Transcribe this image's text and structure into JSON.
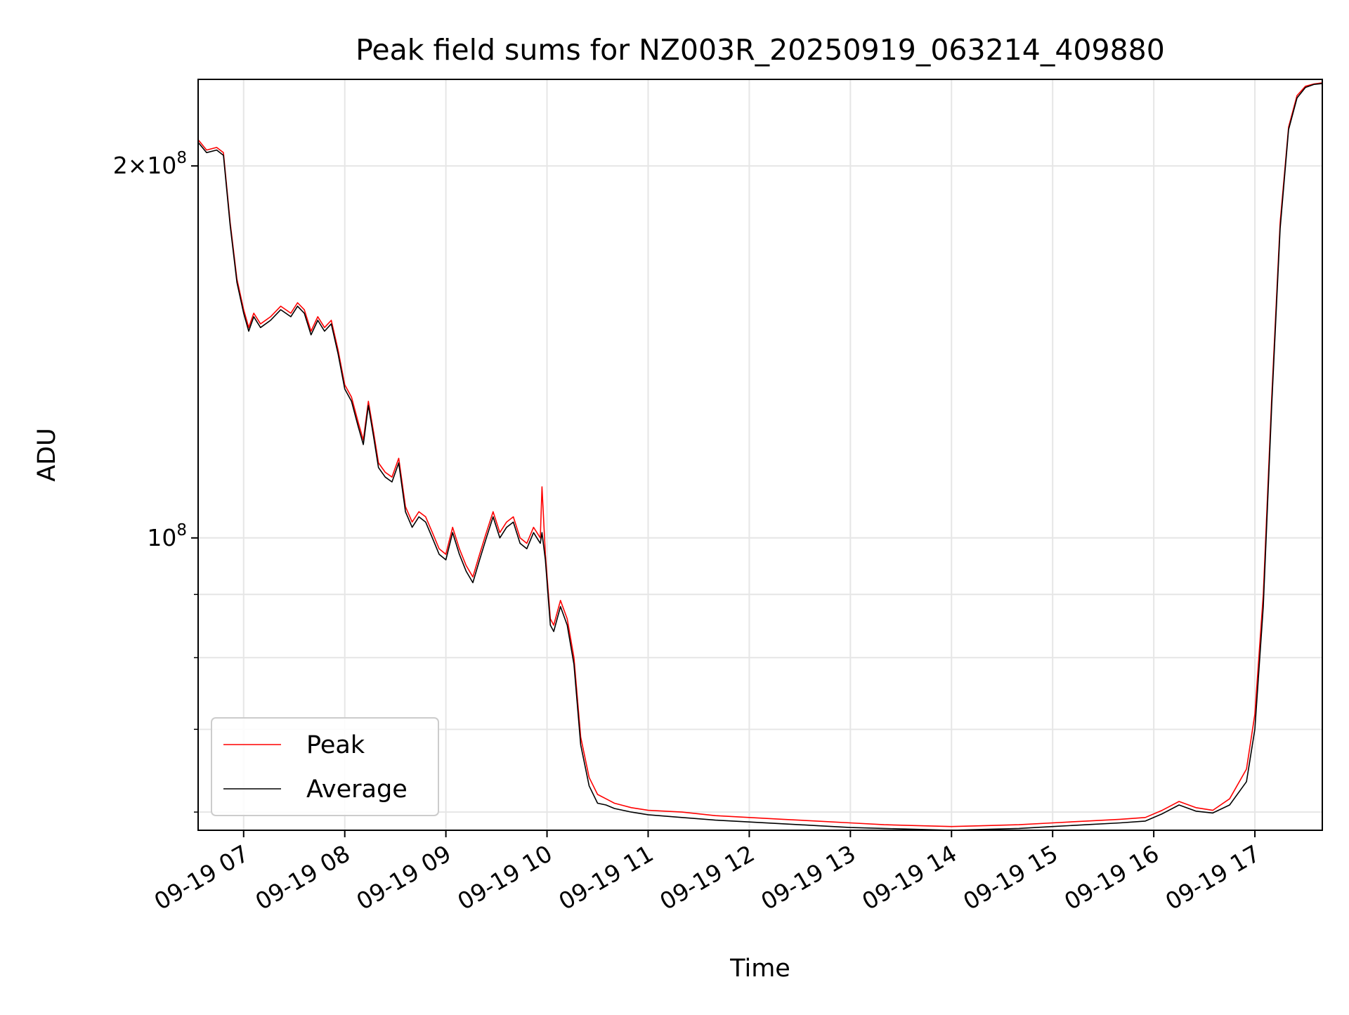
{
  "chart_data": {
    "type": "line",
    "title": "Peak field sums for NZ003R_20250919_063214_409880",
    "xlabel": "Time",
    "ylabel": "ADU",
    "y_scale": "log",
    "xlim": [
      "2025-09-19 06:33",
      "2025-09-19 17:40"
    ],
    "ylim": [
      58000000,
      235000000
    ],
    "x_ticks": [
      {
        "value": "2025-09-19 07:00",
        "label": "09-19 07"
      },
      {
        "value": "2025-09-19 08:00",
        "label": "09-19 08"
      },
      {
        "value": "2025-09-19 09:00",
        "label": "09-19 09"
      },
      {
        "value": "2025-09-19 10:00",
        "label": "09-19 10"
      },
      {
        "value": "2025-09-19 11:00",
        "label": "09-19 11"
      },
      {
        "value": "2025-09-19 12:00",
        "label": "09-19 12"
      },
      {
        "value": "2025-09-19 13:00",
        "label": "09-19 13"
      },
      {
        "value": "2025-09-19 14:00",
        "label": "09-19 14"
      },
      {
        "value": "2025-09-19 15:00",
        "label": "09-19 15"
      },
      {
        "value": "2025-09-19 16:00",
        "label": "09-19 16"
      },
      {
        "value": "2025-09-19 17:00",
        "label": "09-19 17"
      }
    ],
    "y_ticks_major": [
      {
        "value": 100000000,
        "base": "10",
        "exp": "8",
        "coef": ""
      },
      {
        "value": 200000000,
        "base": "10",
        "exp": "8",
        "coef": "2"
      }
    ],
    "y_ticks_minor": [
      60000000,
      70000000,
      80000000,
      90000000
    ],
    "grid": true,
    "legend": {
      "position": "lower-left",
      "entries": [
        "Peak",
        "Average"
      ]
    },
    "series": [
      {
        "name": "Peak",
        "color": "#ff0000",
        "x": [
          "2025-09-19 06:33",
          "2025-09-19 06:38",
          "2025-09-19 06:44",
          "2025-09-19 06:48",
          "2025-09-19 06:52",
          "2025-09-19 06:56",
          "2025-09-19 07:00",
          "2025-09-19 07:03",
          "2025-09-19 07:06",
          "2025-09-19 07:10",
          "2025-09-19 07:16",
          "2025-09-19 07:22",
          "2025-09-19 07:28",
          "2025-09-19 07:32",
          "2025-09-19 07:36",
          "2025-09-19 07:40",
          "2025-09-19 07:44",
          "2025-09-19 07:48",
          "2025-09-19 07:52",
          "2025-09-19 07:56",
          "2025-09-19 08:00",
          "2025-09-19 08:04",
          "2025-09-19 08:08",
          "2025-09-19 08:11",
          "2025-09-19 08:14",
          "2025-09-19 08:17",
          "2025-09-19 08:20",
          "2025-09-19 08:24",
          "2025-09-19 08:28",
          "2025-09-19 08:32",
          "2025-09-19 08:36",
          "2025-09-19 08:40",
          "2025-09-19 08:44",
          "2025-09-19 08:48",
          "2025-09-19 08:52",
          "2025-09-19 08:56",
          "2025-09-19 09:00",
          "2025-09-19 09:04",
          "2025-09-19 09:08",
          "2025-09-19 09:12",
          "2025-09-19 09:16",
          "2025-09-19 09:20",
          "2025-09-19 09:24",
          "2025-09-19 09:28",
          "2025-09-19 09:32",
          "2025-09-19 09:36",
          "2025-09-19 09:40",
          "2025-09-19 09:44",
          "2025-09-19 09:48",
          "2025-09-19 09:52",
          "2025-09-19 09:56",
          "2025-09-19 09:57",
          "2025-09-19 09:59",
          "2025-09-19 10:02",
          "2025-09-19 10:04",
          "2025-09-19 10:08",
          "2025-09-19 10:12",
          "2025-09-19 10:16",
          "2025-09-19 10:20",
          "2025-09-19 10:25",
          "2025-09-19 10:30",
          "2025-09-19 10:35",
          "2025-09-19 10:40",
          "2025-09-19 10:50",
          "2025-09-19 11:00",
          "2025-09-19 11:20",
          "2025-09-19 11:40",
          "2025-09-19 12:00",
          "2025-09-19 12:20",
          "2025-09-19 12:40",
          "2025-09-19 13:00",
          "2025-09-19 13:20",
          "2025-09-19 13:40",
          "2025-09-19 14:00",
          "2025-09-19 14:20",
          "2025-09-19 14:40",
          "2025-09-19 15:00",
          "2025-09-19 15:20",
          "2025-09-19 15:40",
          "2025-09-19 15:55",
          "2025-09-19 16:05",
          "2025-09-19 16:15",
          "2025-09-19 16:25",
          "2025-09-19 16:35",
          "2025-09-19 16:45",
          "2025-09-19 16:55",
          "2025-09-19 17:00",
          "2025-09-19 17:05",
          "2025-09-19 17:10",
          "2025-09-19 17:15",
          "2025-09-19 17:20",
          "2025-09-19 17:25",
          "2025-09-19 17:30",
          "2025-09-19 17:35",
          "2025-09-19 17:40"
        ],
        "y": [
          210000000,
          206000000,
          207000000,
          205000000,
          180000000,
          162000000,
          153000000,
          148000000,
          152000000,
          149000000,
          151000000,
          154000000,
          152000000,
          155000000,
          153000000,
          147000000,
          151000000,
          148000000,
          150000000,
          142000000,
          133000000,
          130000000,
          124000000,
          120000000,
          129000000,
          122000000,
          115000000,
          113000000,
          112000000,
          116000000,
          106000000,
          103000000,
          105000000,
          104000000,
          101000000,
          98000000,
          97000000,
          102000000,
          98000000,
          95000000,
          93000000,
          97000000,
          101000000,
          105000000,
          101000000,
          103000000,
          104000000,
          100000000,
          99000000,
          102000000,
          100000000,
          110000000,
          97000000,
          86000000,
          85000000,
          89000000,
          86000000,
          80000000,
          69000000,
          64000000,
          62000000,
          61500000,
          61000000,
          60500000,
          60200000,
          60000000,
          59600000,
          59400000,
          59200000,
          59000000,
          58800000,
          58600000,
          58500000,
          58400000,
          58500000,
          58600000,
          58800000,
          59000000,
          59200000,
          59400000,
          60200000,
          61200000,
          60500000,
          60200000,
          61500000,
          65000000,
          72000000,
          90000000,
          130000000,
          180000000,
          215000000,
          228000000,
          232000000,
          233000000,
          233500000
        ]
      },
      {
        "name": "Average",
        "color": "#000000",
        "x": [
          "2025-09-19 06:33",
          "2025-09-19 06:38",
          "2025-09-19 06:44",
          "2025-09-19 06:48",
          "2025-09-19 06:52",
          "2025-09-19 06:56",
          "2025-09-19 07:00",
          "2025-09-19 07:03",
          "2025-09-19 07:06",
          "2025-09-19 07:10",
          "2025-09-19 07:16",
          "2025-09-19 07:22",
          "2025-09-19 07:28",
          "2025-09-19 07:32",
          "2025-09-19 07:36",
          "2025-09-19 07:40",
          "2025-09-19 07:44",
          "2025-09-19 07:48",
          "2025-09-19 07:52",
          "2025-09-19 07:56",
          "2025-09-19 08:00",
          "2025-09-19 08:04",
          "2025-09-19 08:08",
          "2025-09-19 08:11",
          "2025-09-19 08:14",
          "2025-09-19 08:17",
          "2025-09-19 08:20",
          "2025-09-19 08:24",
          "2025-09-19 08:28",
          "2025-09-19 08:32",
          "2025-09-19 08:36",
          "2025-09-19 08:40",
          "2025-09-19 08:44",
          "2025-09-19 08:48",
          "2025-09-19 08:52",
          "2025-09-19 08:56",
          "2025-09-19 09:00",
          "2025-09-19 09:04",
          "2025-09-19 09:08",
          "2025-09-19 09:12",
          "2025-09-19 09:16",
          "2025-09-19 09:20",
          "2025-09-19 09:24",
          "2025-09-19 09:28",
          "2025-09-19 09:32",
          "2025-09-19 09:36",
          "2025-09-19 09:40",
          "2025-09-19 09:44",
          "2025-09-19 09:48",
          "2025-09-19 09:52",
          "2025-09-19 09:56",
          "2025-09-19 09:57",
          "2025-09-19 09:59",
          "2025-09-19 10:02",
          "2025-09-19 10:04",
          "2025-09-19 10:08",
          "2025-09-19 10:12",
          "2025-09-19 10:16",
          "2025-09-19 10:20",
          "2025-09-19 10:25",
          "2025-09-19 10:30",
          "2025-09-19 10:35",
          "2025-09-19 10:40",
          "2025-09-19 10:50",
          "2025-09-19 11:00",
          "2025-09-19 11:20",
          "2025-09-19 11:40",
          "2025-09-19 12:00",
          "2025-09-19 12:20",
          "2025-09-19 12:40",
          "2025-09-19 13:00",
          "2025-09-19 13:20",
          "2025-09-19 13:40",
          "2025-09-19 14:00",
          "2025-09-19 14:20",
          "2025-09-19 14:40",
          "2025-09-19 15:00",
          "2025-09-19 15:20",
          "2025-09-19 15:40",
          "2025-09-19 15:55",
          "2025-09-19 16:05",
          "2025-09-19 16:15",
          "2025-09-19 16:25",
          "2025-09-19 16:35",
          "2025-09-19 16:45",
          "2025-09-19 16:55",
          "2025-09-19 17:00",
          "2025-09-19 17:05",
          "2025-09-19 17:10",
          "2025-09-19 17:15",
          "2025-09-19 17:20",
          "2025-09-19 17:25",
          "2025-09-19 17:30",
          "2025-09-19 17:35",
          "2025-09-19 17:40"
        ],
        "y": [
          209000000,
          205000000,
          206000000,
          204000000,
          179000000,
          161000000,
          152000000,
          147000000,
          151000000,
          148000000,
          150000000,
          153000000,
          151000000,
          154000000,
          152000000,
          146000000,
          150000000,
          147000000,
          149000000,
          141000000,
          132000000,
          129000000,
          123000000,
          119000000,
          128000000,
          121000000,
          114000000,
          112000000,
          111000000,
          115000000,
          105000000,
          102000000,
          104000000,
          103000000,
          100000000,
          97000000,
          96000000,
          101000000,
          97000000,
          94000000,
          92000000,
          96000000,
          100000000,
          104000000,
          100000000,
          102000000,
          103000000,
          99000000,
          98000000,
          101000000,
          99000000,
          101000000,
          96000000,
          85000000,
          84000000,
          88000000,
          85000000,
          79000000,
          68000000,
          63000000,
          61000000,
          60800000,
          60400000,
          60000000,
          59700000,
          59400000,
          59100000,
          58900000,
          58700000,
          58500000,
          58300000,
          58200000,
          58100000,
          58000000,
          58100000,
          58200000,
          58400000,
          58600000,
          58800000,
          59000000,
          59800000,
          60800000,
          60100000,
          59900000,
          60800000,
          63500000,
          70000000,
          88000000,
          128000000,
          178000000,
          214000000,
          227000000,
          231500000,
          232800000,
          233200000
        ]
      }
    ]
  }
}
